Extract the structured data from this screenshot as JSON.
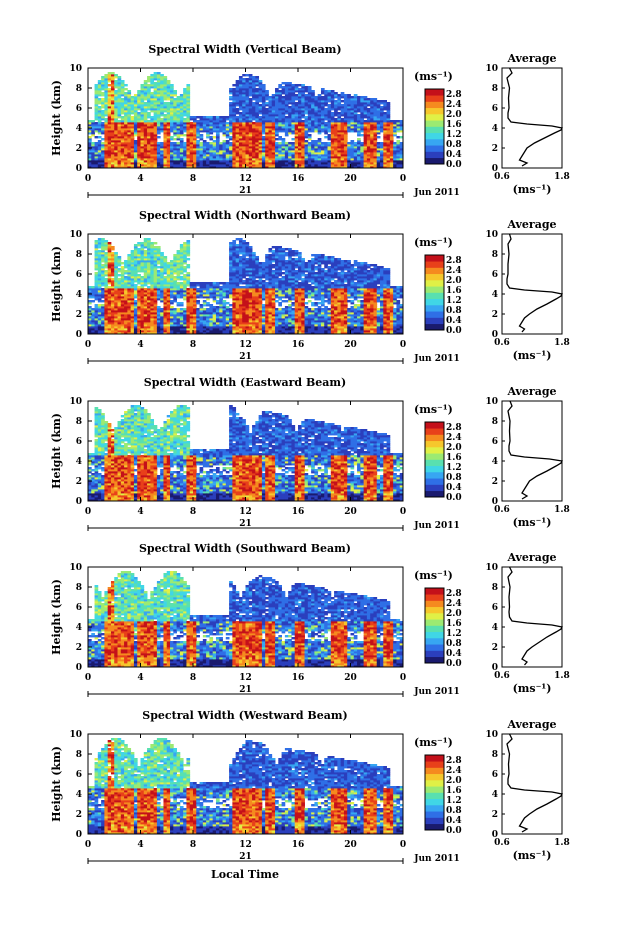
{
  "figure": {
    "bottom_label": "Local Time",
    "colormap": [
      "#1a1a6e",
      "#2b3fbd",
      "#2f6fe6",
      "#37a6f2",
      "#40d6e6",
      "#59e0b0",
      "#9cea72",
      "#e0f046",
      "#f6c72c",
      "#f58a1f",
      "#e8401a",
      "#c4101a"
    ]
  },
  "chart_data": [
    {
      "type": "heatmap",
      "title": "Spectral Width (Vertical Beam)",
      "ylabel": "Height (km)",
      "x_ticks": [
        "0",
        "4",
        "8",
        "12",
        "16",
        "20",
        "0"
      ],
      "xlim": [
        0,
        24
      ],
      "ylim": [
        0,
        10
      ],
      "y_ticks": [
        "0",
        "2",
        "4",
        "6",
        "8",
        "10"
      ],
      "day_label": "21",
      "date_label": "Jun 2011",
      "colorbar": {
        "unit": "(ms⁻¹)",
        "ticks": [
          "0.0",
          "0.4",
          "0.8",
          "1.2",
          "1.6",
          "2.0",
          "2.4",
          "2.8"
        ],
        "range": [
          0,
          3.0
        ]
      },
      "average_profile": {
        "title": "Average",
        "xlabel": "(ms⁻¹)",
        "x_ticks": [
          "0.6",
          "1.8"
        ],
        "xlim": [
          0.6,
          1.8
        ],
        "y_ticks": [
          "0",
          "2",
          "4",
          "6",
          "8",
          "10"
        ],
        "height_km": [
          0.2,
          0.5,
          0.8,
          1.2,
          1.6,
          2.0,
          2.5,
          3.0,
          3.5,
          3.8,
          4.0,
          4.2,
          4.4,
          4.6,
          5.0,
          5.5,
          6.0,
          7.0,
          8.0,
          9.0,
          9.5,
          10.0
        ],
        "width_ms": [
          1.0,
          1.1,
          0.95,
          1.0,
          1.05,
          1.1,
          1.25,
          1.45,
          1.65,
          1.78,
          1.8,
          1.6,
          1.1,
          0.78,
          0.72,
          0.72,
          0.74,
          0.73,
          0.75,
          0.7,
          0.8,
          0.75
        ]
      }
    },
    {
      "type": "heatmap",
      "title": "Spectral Width (Northward Beam)",
      "ylabel": "Height (km)",
      "x_ticks": [
        "0",
        "4",
        "8",
        "12",
        "16",
        "20",
        "0"
      ],
      "xlim": [
        0,
        24
      ],
      "ylim": [
        0,
        10
      ],
      "y_ticks": [
        "0",
        "2",
        "4",
        "6",
        "8",
        "10"
      ],
      "day_label": "21",
      "date_label": "Jun 2011",
      "colorbar": {
        "unit": "(ms⁻¹)",
        "ticks": [
          "0.0",
          "0.4",
          "0.8",
          "1.2",
          "1.6",
          "2.0",
          "2.4",
          "2.8"
        ],
        "range": [
          0,
          3.0
        ]
      },
      "average_profile": {
        "title": "Average",
        "xlabel": "(ms⁻¹)",
        "x_ticks": [
          "0.6",
          "1.8"
        ],
        "xlim": [
          0.6,
          1.8
        ],
        "y_ticks": [
          "0",
          "2",
          "4",
          "6",
          "8",
          "10"
        ],
        "height_km": [
          0.2,
          0.5,
          0.8,
          1.2,
          1.6,
          2.0,
          2.5,
          3.0,
          3.5,
          3.8,
          4.0,
          4.2,
          4.4,
          4.6,
          5.0,
          5.5,
          6.0,
          7.0,
          8.0,
          9.0,
          9.5,
          10.0
        ],
        "width_ms": [
          1.0,
          1.05,
          0.95,
          1.0,
          1.05,
          1.15,
          1.3,
          1.5,
          1.68,
          1.78,
          1.8,
          1.6,
          1.05,
          0.75,
          0.7,
          0.7,
          0.72,
          0.72,
          0.74,
          0.72,
          0.78,
          0.75
        ]
      }
    },
    {
      "type": "heatmap",
      "title": "Spectral Width (Eastward Beam)",
      "ylabel": "Height (km)",
      "x_ticks": [
        "0",
        "4",
        "8",
        "12",
        "16",
        "20",
        "0"
      ],
      "xlim": [
        0,
        24
      ],
      "ylim": [
        0,
        10
      ],
      "y_ticks": [
        "0",
        "2",
        "4",
        "6",
        "8",
        "10"
      ],
      "day_label": "21",
      "date_label": "Jun 2011",
      "colorbar": {
        "unit": "(ms⁻¹)",
        "ticks": [
          "0.0",
          "0.4",
          "0.8",
          "1.2",
          "1.6",
          "2.0",
          "2.4",
          "2.8"
        ],
        "range": [
          0,
          3.0
        ]
      },
      "average_profile": {
        "title": "Average",
        "xlabel": "(ms⁻¹)",
        "x_ticks": [
          "0.6",
          "1.8"
        ],
        "xlim": [
          0.6,
          1.8
        ],
        "y_ticks": [
          "0",
          "2",
          "4",
          "6",
          "8",
          "10"
        ],
        "height_km": [
          0.2,
          0.5,
          0.8,
          1.2,
          1.6,
          2.0,
          2.5,
          3.0,
          3.5,
          3.8,
          4.0,
          4.2,
          4.4,
          4.6,
          5.0,
          5.5,
          6.0,
          7.0,
          8.0,
          9.0,
          9.5,
          10.0
        ],
        "width_ms": [
          1.0,
          1.1,
          1.0,
          1.05,
          1.1,
          1.15,
          1.3,
          1.5,
          1.68,
          1.78,
          1.8,
          1.55,
          1.05,
          0.78,
          0.74,
          0.74,
          0.76,
          0.75,
          0.76,
          0.72,
          0.8,
          0.76
        ]
      }
    },
    {
      "type": "heatmap",
      "title": "Spectral Width (Southward Beam)",
      "ylabel": "Height (km)",
      "x_ticks": [
        "0",
        "4",
        "8",
        "12",
        "16",
        "20",
        "0"
      ],
      "xlim": [
        0,
        24
      ],
      "ylim": [
        0,
        10
      ],
      "y_ticks": [
        "0",
        "2",
        "4",
        "6",
        "8",
        "10"
      ],
      "day_label": "21",
      "date_label": "Jun 2011",
      "colorbar": {
        "unit": "(ms⁻¹)",
        "ticks": [
          "0.0",
          "0.4",
          "0.8",
          "1.2",
          "1.6",
          "2.0",
          "2.4",
          "2.8"
        ],
        "range": [
          0,
          3.0
        ]
      },
      "average_profile": {
        "title": "Average",
        "xlabel": "(ms⁻¹)",
        "x_ticks": [
          "0.6",
          "1.8"
        ],
        "xlim": [
          0.6,
          1.8
        ],
        "y_ticks": [
          "0",
          "2",
          "4",
          "6",
          "8",
          "10"
        ],
        "height_km": [
          0.2,
          0.5,
          0.8,
          1.2,
          1.6,
          2.0,
          2.5,
          3.0,
          3.5,
          3.8,
          4.0,
          4.2,
          4.4,
          4.6,
          5.0,
          5.5,
          6.0,
          7.0,
          8.0,
          9.0,
          9.5,
          10.0
        ],
        "width_ms": [
          1.05,
          1.1,
          1.0,
          1.05,
          1.1,
          1.2,
          1.35,
          1.5,
          1.68,
          1.78,
          1.8,
          1.6,
          1.1,
          0.8,
          0.75,
          0.74,
          0.75,
          0.74,
          0.76,
          0.72,
          0.8,
          0.75
        ]
      }
    },
    {
      "type": "heatmap",
      "title": "Spectral Width (Westward Beam)",
      "ylabel": "Height (km)",
      "x_ticks": [
        "0",
        "4",
        "8",
        "12",
        "16",
        "20",
        "0"
      ],
      "xlim": [
        0,
        24
      ],
      "ylim": [
        0,
        10
      ],
      "y_ticks": [
        "0",
        "2",
        "4",
        "6",
        "8",
        "10"
      ],
      "day_label": "21",
      "date_label": "Jun 2011",
      "colorbar": {
        "unit": "(ms⁻¹)",
        "ticks": [
          "0.0",
          "0.4",
          "0.8",
          "1.2",
          "1.6",
          "2.0",
          "2.4",
          "2.8"
        ],
        "range": [
          0,
          3.0
        ]
      },
      "average_profile": {
        "title": "Average",
        "xlabel": "(ms⁻¹)",
        "x_ticks": [
          "0.6",
          "1.8"
        ],
        "xlim": [
          0.6,
          1.8
        ],
        "y_ticks": [
          "0",
          "2",
          "4",
          "6",
          "8",
          "10"
        ],
        "height_km": [
          0.2,
          0.5,
          0.8,
          1.2,
          1.6,
          2.0,
          2.5,
          3.0,
          3.5,
          3.8,
          4.0,
          4.2,
          4.4,
          4.6,
          5.0,
          5.5,
          6.0,
          7.0,
          8.0,
          9.0,
          9.5,
          10.0
        ],
        "width_ms": [
          1.0,
          1.1,
          0.95,
          1.0,
          1.05,
          1.15,
          1.3,
          1.5,
          1.68,
          1.78,
          1.8,
          1.6,
          1.05,
          0.78,
          0.72,
          0.72,
          0.74,
          0.73,
          0.75,
          0.7,
          0.8,
          0.75
        ]
      }
    }
  ]
}
